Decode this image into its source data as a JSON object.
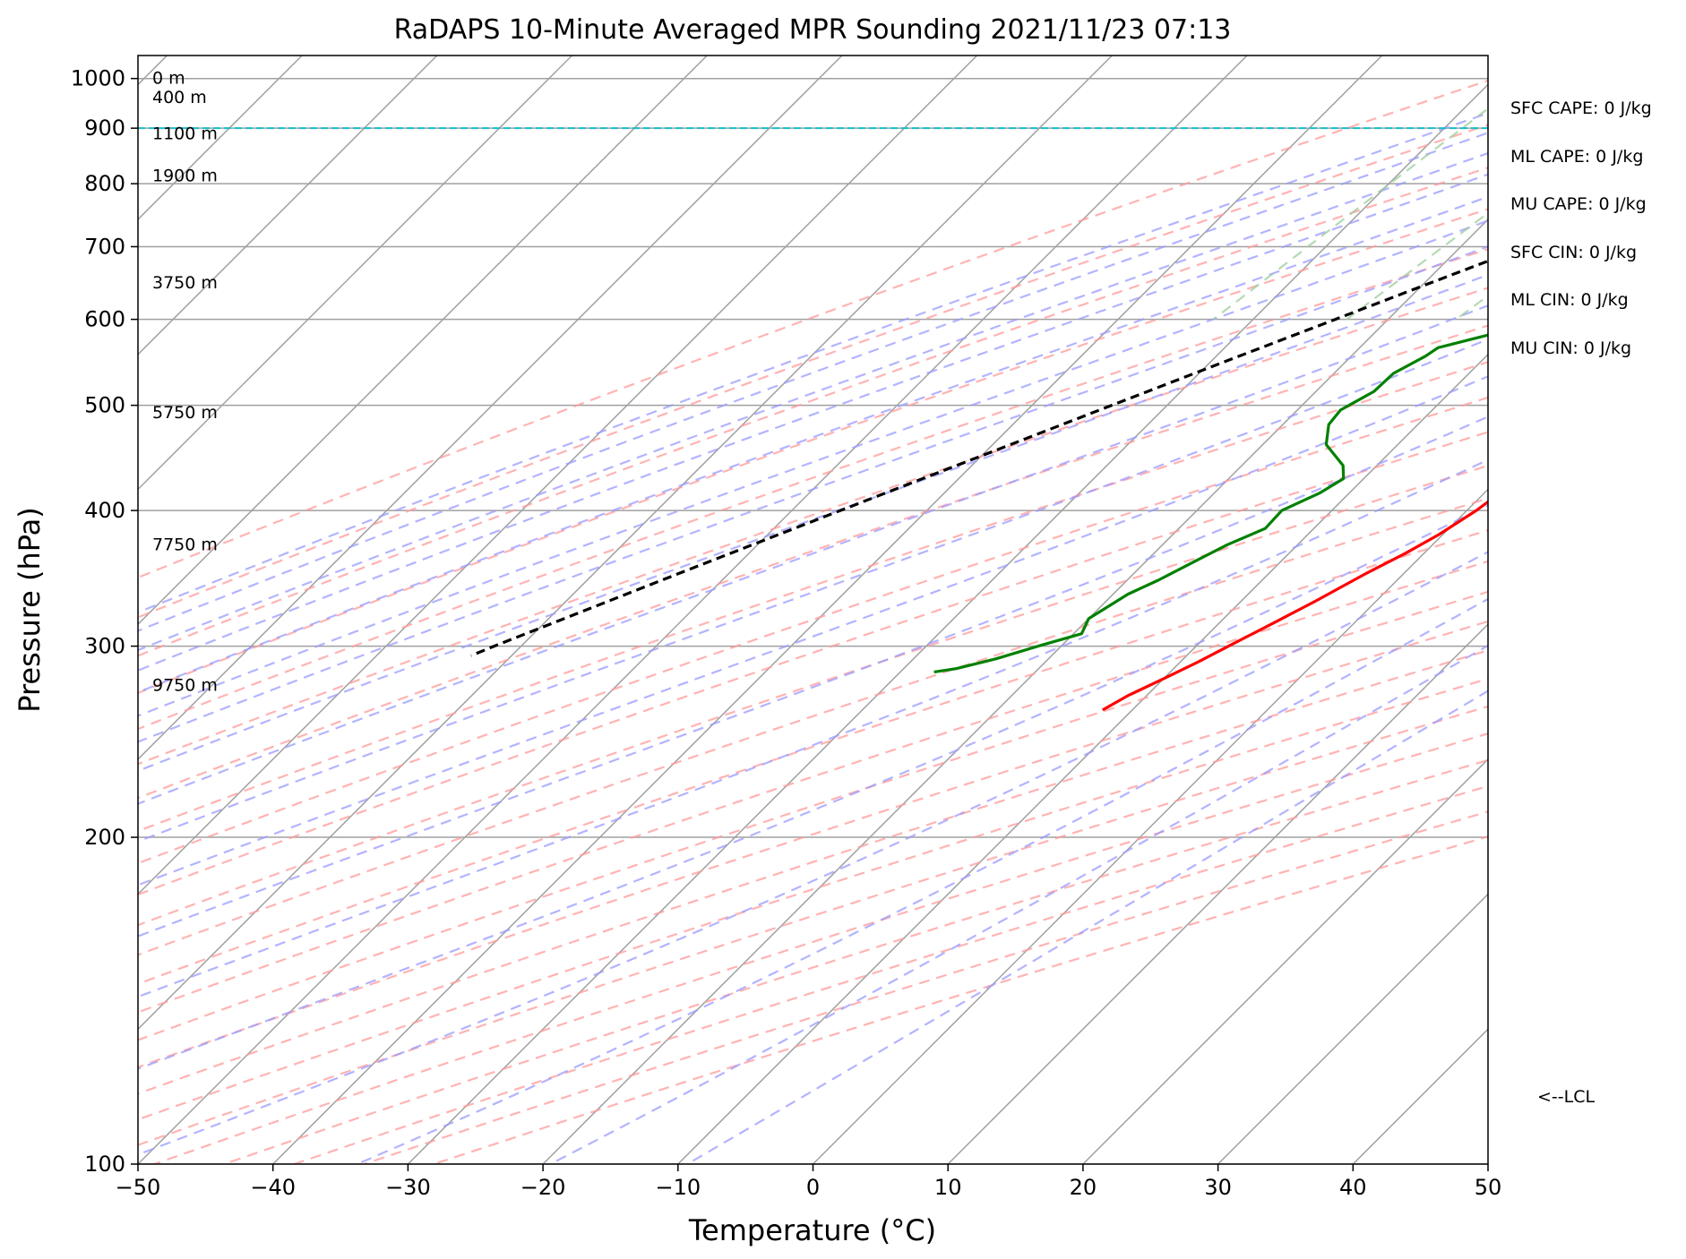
{
  "chart_data": {
    "type": "line",
    "title": "RaDAPS 10-Minute Averaged MPR Sounding 2021/11/23 07:13",
    "xlabel": "Temperature (°C)",
    "ylabel": "Pressure (hPa)",
    "xlim": [
      -50,
      50
    ],
    "ylim": [
      1050,
      100
    ],
    "y_scale": "log",
    "skew": "skew-T log-p",
    "x_ticks": [
      -50,
      -40,
      -30,
      -20,
      -10,
      0,
      10,
      20,
      30,
      40,
      50
    ],
    "x_tick_labels": [
      "−50",
      "−40",
      "−30",
      "−20",
      "−10",
      "0",
      "10",
      "20",
      "30",
      "40",
      "50"
    ],
    "y_ticks": [
      100,
      200,
      300,
      400,
      500,
      600,
      700,
      800,
      900,
      1000
    ],
    "y_tick_labels": [
      "100",
      "200",
      "300",
      "400",
      "500",
      "600",
      "700",
      "800",
      "900",
      "1000"
    ],
    "grid": true,
    "series": [
      {
        "color": "#ff0000",
        "points": [
          [
            1000,
            1.7
          ],
          [
            990,
            1.4
          ],
          [
            975,
            1.4
          ],
          [
            965,
            1.6
          ],
          [
            950,
            1.7
          ],
          [
            930,
            2.0
          ],
          [
            915,
            2.2
          ],
          [
            900,
            2.5
          ],
          [
            890,
            2.9
          ],
          [
            880,
            3.0
          ],
          [
            868,
            2.8
          ],
          [
            855,
            2.6
          ],
          [
            840,
            2.6
          ],
          [
            825,
            2.5
          ],
          [
            805,
            2.4
          ],
          [
            790,
            2.7
          ],
          [
            760,
            2.9
          ],
          [
            730,
            3.4
          ],
          [
            700,
            4.0
          ],
          [
            680,
            4.3
          ],
          [
            660,
            4.6
          ],
          [
            640,
            5.0
          ],
          [
            620,
            5.4
          ],
          [
            600,
            5.8
          ],
          [
            580,
            5.6
          ],
          [
            560,
            5.2
          ],
          [
            540,
            4.9
          ],
          [
            520,
            4.4
          ],
          [
            500,
            3.8
          ],
          [
            480,
            3.1
          ],
          [
            460,
            2.3
          ],
          [
            440,
            1.8
          ],
          [
            420,
            1.3
          ],
          [
            400,
            0.7
          ],
          [
            380,
            -0.3
          ],
          [
            365,
            -1.4
          ],
          [
            350,
            -2.8
          ],
          [
            330,
            -4.5
          ],
          [
            315,
            -6.0
          ],
          [
            300,
            -7.6
          ],
          [
            290,
            -8.7
          ],
          [
            280,
            -10.0
          ],
          [
            270,
            -11.4
          ],
          [
            262,
            -12.2
          ]
        ]
      },
      {
        "color": "#008000",
        "points": [
          [
            1000,
            -6.5
          ],
          [
            993,
            -11.4
          ],
          [
            985,
            -14.2
          ],
          [
            975,
            -16.3
          ],
          [
            965,
            -16.4
          ],
          [
            955,
            -16.1
          ],
          [
            945,
            -14.4
          ],
          [
            935,
            -13.8
          ],
          [
            925,
            -12.2
          ],
          [
            910,
            -11.5
          ],
          [
            900,
            -11.5
          ],
          [
            890,
            -12.0
          ],
          [
            875,
            -14.5
          ],
          [
            860,
            -16.3
          ],
          [
            845,
            -16.5
          ],
          [
            830,
            -14.7
          ],
          [
            815,
            -12.4
          ],
          [
            800,
            -9.5
          ],
          [
            790,
            -9.8
          ],
          [
            770,
            -10.4
          ],
          [
            750,
            -10.2
          ],
          [
            730,
            -9.7
          ],
          [
            710,
            -8.4
          ],
          [
            700,
            -8.2
          ],
          [
            690,
            -8.9
          ],
          [
            675,
            -8.4
          ],
          [
            660,
            -6.4
          ],
          [
            645,
            -4.9
          ],
          [
            630,
            -5.0
          ],
          [
            600,
            -9.2
          ],
          [
            580,
            -11.5
          ],
          [
            565,
            -14.2
          ],
          [
            555,
            -14.5
          ],
          [
            535,
            -15.6
          ],
          [
            515,
            -15.7
          ],
          [
            495,
            -16.8
          ],
          [
            480,
            -16.6
          ],
          [
            460,
            -15.3
          ],
          [
            440,
            -12.5
          ],
          [
            428,
            -11.5
          ],
          [
            415,
            -12.2
          ],
          [
            400,
            -13.7
          ],
          [
            385,
            -13.6
          ],
          [
            372,
            -15.2
          ],
          [
            360,
            -16.3
          ],
          [
            345,
            -17.7
          ],
          [
            335,
            -18.9
          ],
          [
            318,
            -20.0
          ],
          [
            308,
            -19.4
          ],
          [
            300,
            -21.7
          ],
          [
            292,
            -23.9
          ],
          [
            286,
            -26.1
          ],
          [
            284,
            -27.5
          ]
        ]
      },
      {
        "style": "dashed",
        "color": "#000000",
        "points": [
          [
            1000,
            1.7
          ],
          [
            950,
            0.4
          ],
          [
            900,
            -0.9
          ],
          [
            875,
            -2.4
          ],
          [
            850,
            -4.1
          ],
          [
            800,
            -7.6
          ],
          [
            750,
            -11.3
          ],
          [
            700,
            -15.2
          ],
          [
            650,
            -19.4
          ],
          [
            600,
            -23.9
          ],
          [
            550,
            -28.8
          ],
          [
            500,
            -34.1
          ],
          [
            450,
            -39.9
          ],
          [
            400,
            -46.4
          ],
          [
            350,
            -53.7
          ],
          [
            300,
            -62.0
          ],
          [
            294,
            -63.0
          ]
        ]
      }
    ],
    "lcl_pressure": 900,
    "lcl_label": "<--LCL",
    "height_labels": [
      {
        "p": 1000,
        "text": "0 m"
      },
      {
        "p": 960,
        "text": "400 m"
      },
      {
        "p": 889,
        "text": "1100 m"
      },
      {
        "p": 813,
        "text": "1900 m"
      },
      {
        "p": 648,
        "text": "3750 m"
      },
      {
        "p": 492,
        "text": "5750 m"
      },
      {
        "p": 372,
        "text": "7750 m"
      },
      {
        "p": 276,
        "text": "9750 m"
      }
    ],
    "stats": [
      "SFC CAPE: 0 J/kg",
      "ML CAPE: 0 J/kg",
      "MU CAPE: 0 J/kg",
      "SFC CIN: 0 J/kg",
      "ML CIN: 0 J/kg",
      "MU CIN: 0 J/kg"
    ],
    "isotherm_color": "#a0a0a0",
    "dry_adiabat_color": "#ff9999",
    "moist_adiabat_color": "#9999ff",
    "mixing_ratio_color": "#99cc99",
    "lcl_line_color": "#17becf"
  }
}
